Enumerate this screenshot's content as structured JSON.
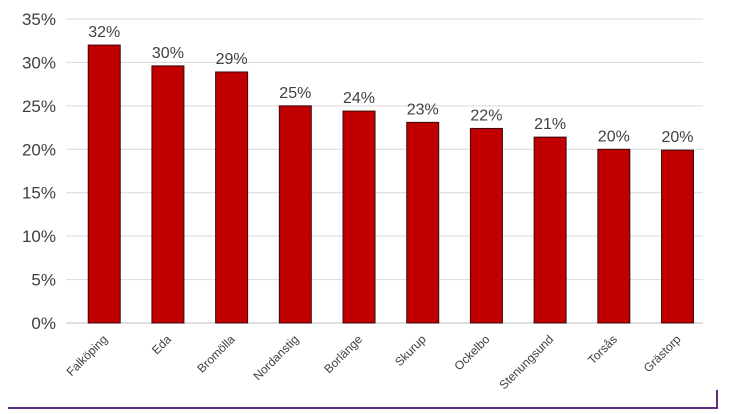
{
  "chart_data": {
    "type": "bar",
    "categories": [
      "Falköping",
      "Eda",
      "Bromölla",
      "Nordanstig",
      "Borlänge",
      "Skurup",
      "Ockelbo",
      "Stenungsund",
      "Torsås",
      "Grästorp"
    ],
    "values": [
      32,
      29.6,
      28.9,
      25,
      24.4,
      23.1,
      22.4,
      21.4,
      20,
      19.9
    ],
    "data_labels": [
      "32%",
      "30%",
      "29%",
      "25%",
      "24%",
      "23%",
      "22%",
      "21%",
      "20%",
      "20%"
    ],
    "y_ticks": [
      "0%",
      "5%",
      "10%",
      "15%",
      "20%",
      "25%",
      "30%",
      "35%"
    ],
    "ylim": [
      0,
      35
    ],
    "grid": true,
    "bar_color": "#c00000",
    "bar_edge_color": "#3b0a0a",
    "title": "",
    "xlabel": "",
    "ylabel": ""
  }
}
